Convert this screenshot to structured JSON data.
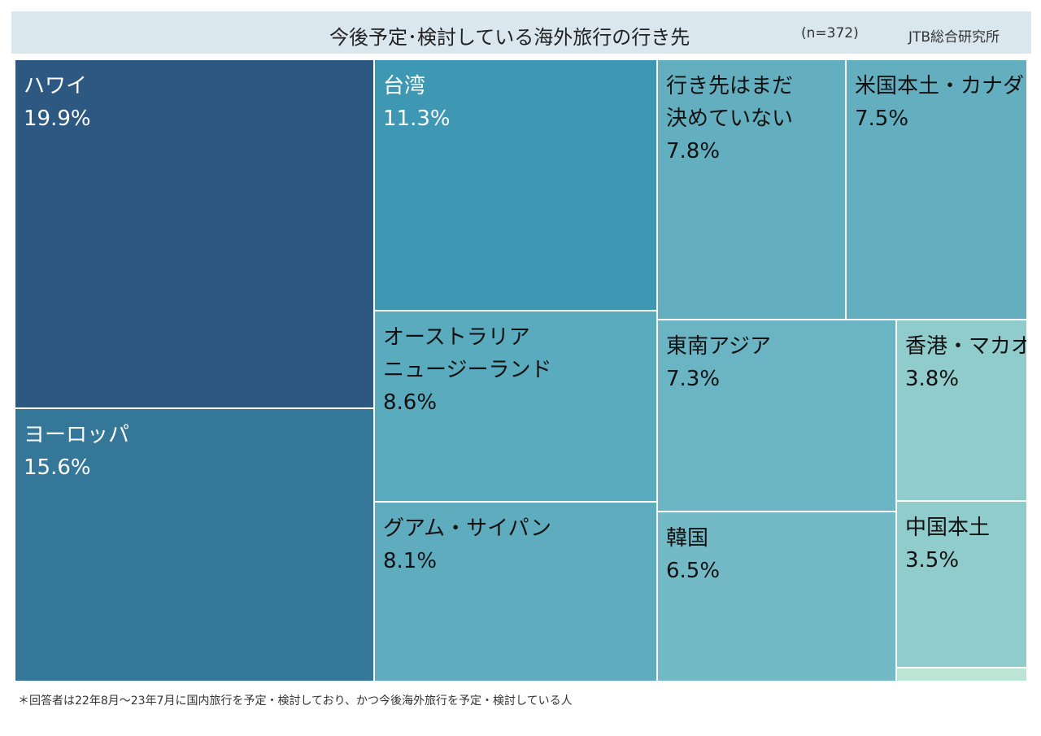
{
  "header": {
    "title": "今後予定･検討している海外旅行の行き先",
    "n": "(n=372)",
    "source": "JTB総合研究所"
  },
  "footnote": "＊回答者は22年8月～23年7月に国内旅行を予定・検討しており、かつ今後海外旅行を予定・検討している人",
  "chart_data": {
    "type": "treemap",
    "title": "今後予定･検討している海外旅行の行き先",
    "items": [
      {
        "name": "ハワイ",
        "value": 19.9,
        "label": "19.9%",
        "color": "#2d5882",
        "text_color": "#ffffff"
      },
      {
        "name": "ヨーロッパ",
        "value": 15.6,
        "label": "15.6%",
        "color": "#347799",
        "text_color": "#ffffff"
      },
      {
        "name": "台湾",
        "value": 11.3,
        "label": "11.3%",
        "color": "#3f98b3",
        "text_color": "#ffffff"
      },
      {
        "name": "オーストラリア\nニュージーランド",
        "value": 8.6,
        "label": "8.6%",
        "color": "#59abbd",
        "text_color": "#111111"
      },
      {
        "name": "グアム・サイパン",
        "value": 8.1,
        "label": "8.1%",
        "color": "#5facbf",
        "text_color": "#111111"
      },
      {
        "name": "行き先はまだ\n決めていない",
        "value": 7.8,
        "label": "7.8%",
        "color": "#63afc0",
        "text_color": "#111111"
      },
      {
        "name": "米国本土・カナダ",
        "value": 7.5,
        "label": "7.5%",
        "color": "#63afc0",
        "text_color": "#111111"
      },
      {
        "name": "東南アジア",
        "value": 7.3,
        "label": "7.3%",
        "color": "#6bb4c3",
        "text_color": "#111111"
      },
      {
        "name": "韓国",
        "value": 6.5,
        "label": "6.5%",
        "color": "#74bac6",
        "text_color": "#111111"
      },
      {
        "name": "香港・マカオ",
        "value": 3.8,
        "label": "3.8%",
        "color": "#90cccc",
        "text_color": "#111111"
      },
      {
        "name": "中国本土",
        "value": 3.5,
        "label": "3.5%",
        "color": "#90cccc",
        "text_color": "#111111"
      },
      {
        "name": "",
        "value": 0,
        "label": "",
        "color": "#bde5d6",
        "text_color": "#111111"
      }
    ]
  }
}
